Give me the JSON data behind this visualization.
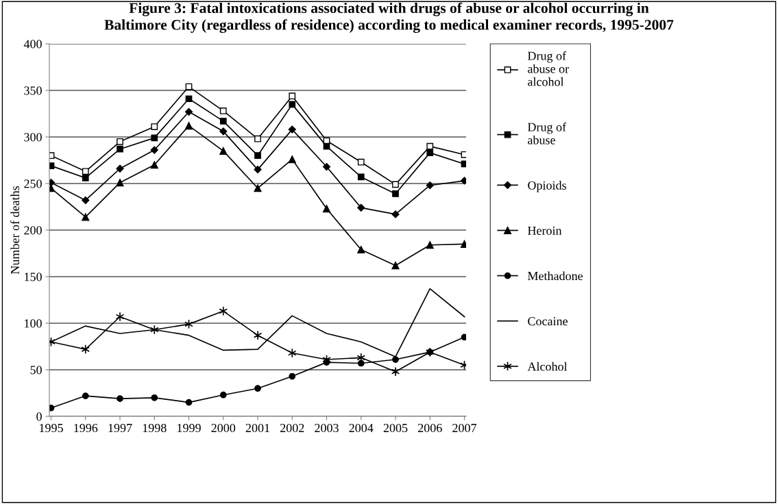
{
  "chart_data": {
    "type": "line",
    "title": "Figure 3: Fatal intoxications associated with drugs of abuse or alcohol occurring in\nBaltimore City (regardless of residence) according to medical examiner records, 1995-2007",
    "ylabel": "Number of deaths",
    "categories": [
      "1995",
      "1996",
      "1997",
      "1998",
      "1999",
      "2000",
      "2001",
      "2002",
      "2003",
      "2004",
      "2005",
      "2006",
      "2007"
    ],
    "ylim": [
      0,
      400
    ],
    "yticks": [
      0,
      50,
      100,
      150,
      200,
      250,
      300,
      350,
      400
    ],
    "grid": "y",
    "legend": "right",
    "series": [
      {
        "name": "Drug of\nabuse or\nalcohol",
        "color": "#000000",
        "marker": "square",
        "values": [
          280,
          263,
          295,
          311,
          354,
          328,
          298,
          344,
          296,
          273,
          249,
          290,
          281
        ]
      },
      {
        "name": "Drug of\nabuse",
        "color": "#000000",
        "marker": "square",
        "values": [
          269,
          256,
          287,
          299,
          341,
          317,
          280,
          335,
          290,
          257,
          239,
          283,
          271
        ]
      },
      {
        "name": "Opioids",
        "color": "#000000",
        "marker": "diamond",
        "values": [
          251,
          232,
          266,
          286,
          327,
          306,
          265,
          308,
          268,
          224,
          217,
          248,
          253
        ]
      },
      {
        "name": "Heroin",
        "color": "#000000",
        "marker": "triangle",
        "values": [
          245,
          214,
          251,
          270,
          312,
          285,
          245,
          276,
          223,
          179,
          162,
          184,
          185
        ]
      },
      {
        "name": "Methadone",
        "color": "#000000",
        "marker": "circle",
        "values": [
          9,
          22,
          19,
          20,
          15,
          23,
          30,
          43,
          58,
          57,
          61,
          69,
          85
        ]
      },
      {
        "name": "Cocaine",
        "color": "#000000",
        "marker": "none",
        "values": [
          80,
          97,
          89,
          93,
          87,
          71,
          72,
          108,
          89,
          80,
          64,
          137,
          107
        ]
      },
      {
        "name": "Alcohol",
        "color": "#000000",
        "marker": "cross",
        "values": [
          80,
          72,
          107,
          93,
          99,
          113,
          87,
          68,
          61,
          63,
          48,
          69,
          55
        ]
      }
    ]
  }
}
